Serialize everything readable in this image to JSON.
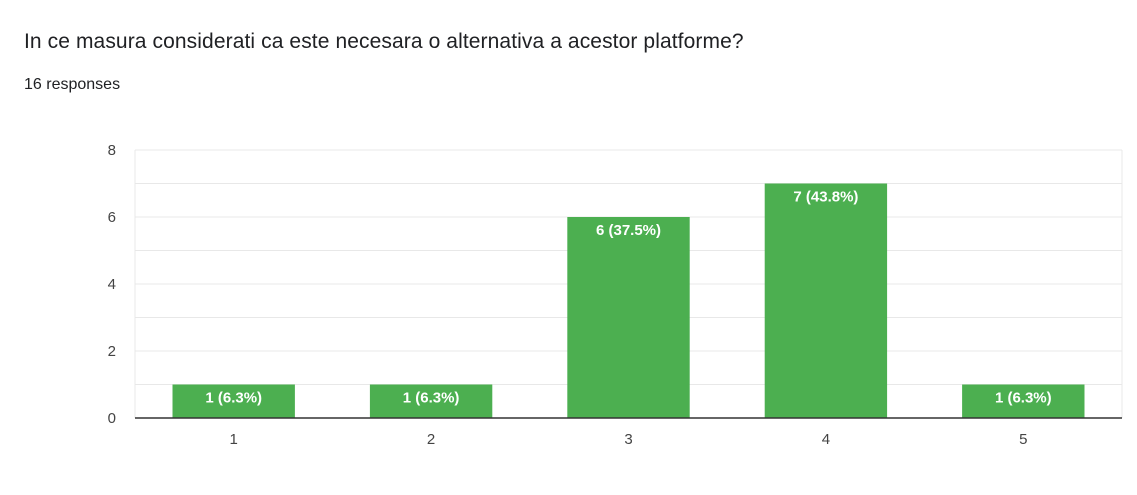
{
  "question": {
    "title": "In ce masura considerati ca este necesara o alternativa a acestor platforme?",
    "responses": "16 responses"
  },
  "colors": {
    "bar": "#4caf50",
    "gridline": "#e8e8e8",
    "axis": "#333333",
    "text": "#202124"
  },
  "chart_data": {
    "type": "bar",
    "title": "In ce masura considerati ca este necesara o alternativa a acestor platforme?",
    "xlabel": "",
    "ylabel": "",
    "categories": [
      "1",
      "2",
      "3",
      "4",
      "5"
    ],
    "values": [
      1,
      1,
      6,
      7,
      1
    ],
    "data_labels": [
      "1 (6.3%)",
      "1 (6.3%)",
      "6 (37.5%)",
      "7 (43.8%)",
      "1 (6.3%)"
    ],
    "ylim": [
      0,
      8
    ],
    "yticks": [
      0,
      2,
      4,
      6,
      8
    ],
    "grid": true,
    "legend": "none"
  }
}
